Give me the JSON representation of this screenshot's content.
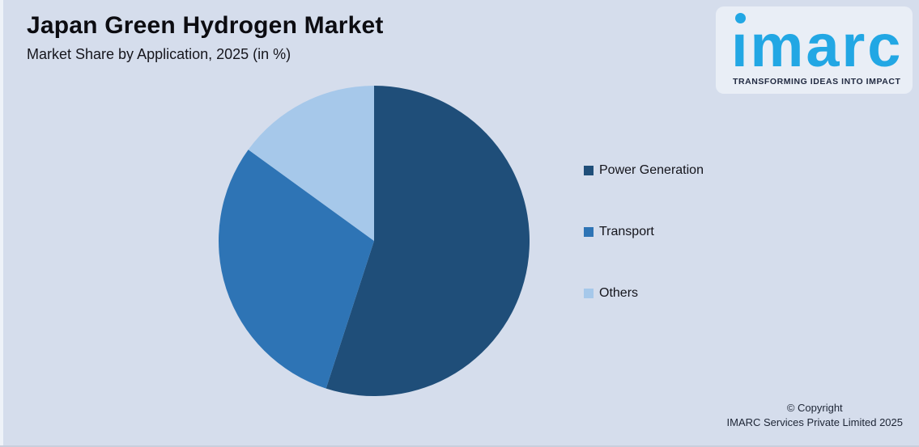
{
  "header": {
    "title": "Japan Green Hydrogen Market",
    "subtitle": "Market Share by Application, 2025 (in %)"
  },
  "logo": {
    "wordmark": "imarc",
    "tagline": "TRANSFORMING IDEAS INTO IMPACT",
    "brand_color": "#22a7e4",
    "tagline_color": "#222b42",
    "panel_color": "#e9eef6"
  },
  "chart_data": {
    "type": "pie",
    "title": "Japan Green Hydrogen Market",
    "subtitle": "Market Share by Application, 2025 (in %)",
    "categories": [
      "Power Generation",
      "Transport",
      "Others"
    ],
    "values": [
      55,
      30,
      15
    ],
    "unit": "%",
    "colors": [
      "#1f4e79",
      "#2e74b5",
      "#a6c8ea"
    ],
    "start_angle_deg": 0,
    "direction": "clockwise",
    "legend_position": "right",
    "data_labels": false
  },
  "legend": {
    "items": [
      {
        "label": "Power Generation",
        "color": "#1f4e79"
      },
      {
        "label": "Transport",
        "color": "#2e74b5"
      },
      {
        "label": "Others",
        "color": "#a6c8ea"
      }
    ]
  },
  "footer": {
    "line1": "© Copyright",
    "line2": "IMARC Services Private Limited 2025"
  },
  "colors": {
    "background": "#d5ddec",
    "title_text": "#0c0c11",
    "legend_text": "#14141b",
    "footer_text": "#1d2535"
  }
}
